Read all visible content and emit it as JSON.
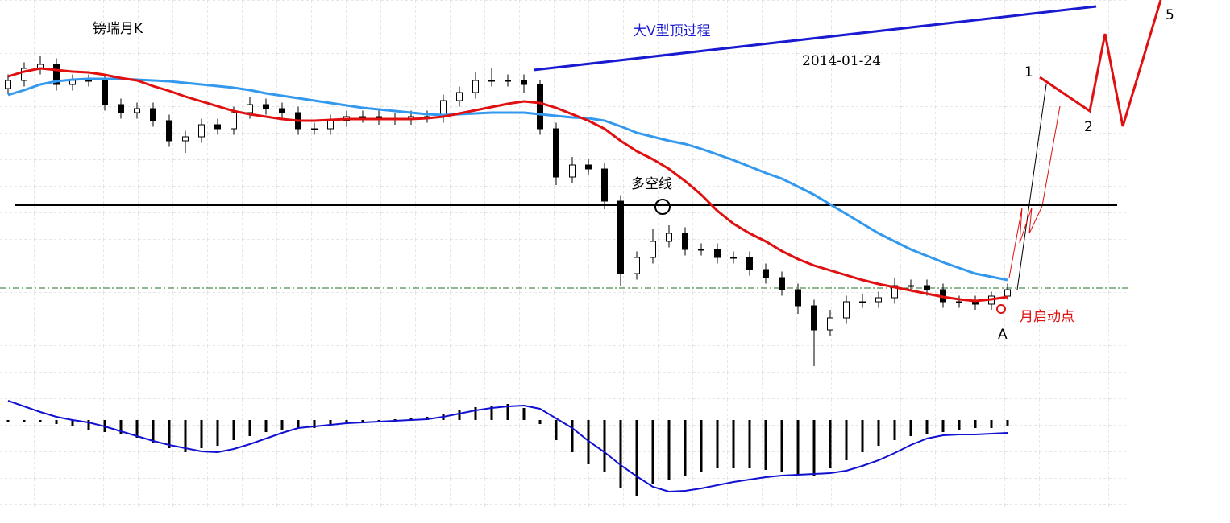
{
  "chart_data": {
    "type": "candlestick",
    "title": "镑瑞月K",
    "date_label": "2014-01-24",
    "annotations": [
      "大V型顶过程",
      "月启动点",
      "A",
      "1",
      "2",
      "5"
    ],
    "categories": [
      null,
      null,
      null,
      null,
      null,
      null,
      null,
      null,
      null,
      null,
      null,
      null,
      null,
      null,
      null,
      null,
      null,
      null,
      null,
      null,
      null,
      null,
      null,
      null,
      null,
      null,
      null,
      null,
      null,
      null,
      null,
      null,
      null,
      null,
      null,
      null,
      null,
      null,
      null,
      null,
      null,
      null,
      null,
      null,
      null,
      null,
      null,
      null,
      null,
      null,
      null,
      null,
      null,
      null,
      null,
      null,
      null,
      null,
      null,
      null,
      null,
      null,
      null
    ],
    "open": [
      72,
      74,
      77,
      78,
      73,
      74,
      74,
      68,
      66,
      67,
      64,
      59,
      60,
      63,
      62,
      66,
      68,
      67,
      66,
      62,
      62,
      64,
      65,
      65,
      64.4,
      64.4,
      65,
      65,
      69,
      71,
      74,
      74,
      74,
      73,
      62,
      50,
      53,
      52,
      44,
      26,
      30,
      34,
      36,
      32,
      32,
      30,
      30,
      27,
      25,
      22,
      18,
      12,
      15,
      19,
      19,
      20,
      23,
      23,
      22,
      19,
      19,
      18.4,
      20.4
    ],
    "high": [
      75.5,
      78.5,
      80,
      79.5,
      75.5,
      75.5,
      75.5,
      69.5,
      68.5,
      68.5,
      65.5,
      61.5,
      64.5,
      64.5,
      67.5,
      70,
      69.5,
      68.5,
      67.5,
      63.5,
      65.5,
      66.5,
      66.5,
      66.5,
      66,
      66.5,
      66.5,
      70.5,
      72.5,
      76,
      77,
      75.5,
      75.5,
      74,
      63.5,
      55,
      54.5,
      53.5,
      45.5,
      31.5,
      37,
      38,
      37.5,
      33.5,
      33.5,
      31.5,
      31.5,
      28.5,
      26.5,
      23.5,
      19.5,
      17,
      20.5,
      21,
      21.5,
      25,
      24.5,
      24.5,
      23.5,
      20.5,
      20.5,
      21.5,
      23.5
    ],
    "low": [
      70.5,
      72.5,
      75.5,
      71.5,
      71.5,
      72.5,
      66.5,
      64.5,
      64.5,
      62.5,
      57.5,
      56,
      58.5,
      60.5,
      60.5,
      64.5,
      65.5,
      64.5,
      60.5,
      60.5,
      60.5,
      62.5,
      63.5,
      63,
      63,
      63,
      63.5,
      63.5,
      67.5,
      69.5,
      72.5,
      72.5,
      71,
      60.5,
      48,
      48.5,
      50.5,
      42,
      23,
      24.5,
      28.5,
      32.5,
      30.5,
      30.5,
      28.5,
      28.5,
      25.5,
      23.5,
      20.5,
      16,
      3,
      10.5,
      13.5,
      17.5,
      17.5,
      18.5,
      21.5,
      20.5,
      17.5,
      17.5,
      17,
      17,
      19.5
    ],
    "close": [
      74,
      77,
      78,
      73,
      74,
      74,
      68,
      66,
      67,
      64,
      59,
      60,
      63,
      62,
      66,
      68,
      67,
      66,
      62,
      62,
      64,
      65,
      65,
      64.4,
      64.4,
      65,
      65,
      69,
      71,
      74,
      74,
      74,
      73,
      62,
      50,
      53,
      52,
      44,
      26,
      30,
      34,
      36,
      32,
      32,
      30,
      30,
      27,
      25,
      22,
      18,
      12,
      15,
      19,
      19,
      20,
      23,
      23,
      22,
      19,
      19,
      18.4,
      20.4,
      22
    ],
    "moving_averages": [
      {
        "color": "#3399ee",
        "values": [
          70.4,
          71.6,
          73,
          73.8,
          74.2,
          74.4,
          74.4,
          74.4,
          74.2,
          74,
          73.8,
          73.4,
          73,
          72.6,
          72.2,
          71.6,
          70.8,
          70.2,
          69.6,
          69,
          68.4,
          67.8,
          67.2,
          66.8,
          66.4,
          66,
          65.6,
          65.4,
          65.6,
          65.8,
          66,
          66,
          66,
          65.6,
          65.2,
          64.8,
          64.6,
          64,
          62.6,
          61,
          60,
          59,
          58.2,
          57,
          55.6,
          54.2,
          52.6,
          51,
          49.6,
          47.6,
          45.6,
          43.2,
          40.8,
          38.4,
          36,
          34,
          32,
          30.4,
          28.8,
          27.4,
          26,
          25.2,
          24.4
        ]
      },
      {
        "color": "#e01010",
        "values": [
          75,
          76.2,
          77,
          76.6,
          76.2,
          76,
          75.4,
          74.6,
          74,
          72.6,
          71.4,
          70,
          68.8,
          67.6,
          66.4,
          65.6,
          65,
          64.4,
          64,
          64,
          64.2,
          64.4,
          64.4,
          64.4,
          64.4,
          64.4,
          64.6,
          65,
          65.8,
          66.6,
          67.4,
          68.2,
          68.8,
          68.4,
          67.2,
          65.6,
          64,
          62,
          59,
          56.4,
          54.4,
          52,
          49,
          45.6,
          41.6,
          38.4,
          36,
          34,
          31.6,
          29.6,
          28,
          26.8,
          25.6,
          24.4,
          23.4,
          22.6,
          21.8,
          21,
          20.2,
          19.6,
          19.2,
          19.6,
          20.2
        ]
      }
    ],
    "levels": [
      {
        "value": 43,
        "label": "多空线",
        "color": "#000000"
      },
      {
        "value": 22.4,
        "color": "#207020"
      }
    ],
    "ylim": [
      0,
      94
    ],
    "macd": {
      "histogram": [
        -0.3,
        -0.3,
        -0.3,
        -0.5,
        -0.8,
        -1.2,
        -1.5,
        -1.8,
        -2.2,
        -2.8,
        -3.5,
        -4.0,
        -3.5,
        -3.2,
        -2.5,
        -2.0,
        -1.5,
        -1.2,
        -1.0,
        -1.0,
        -0.6,
        -0.4,
        -0.2,
        -0.1,
        0.1,
        0.2,
        0.4,
        0.8,
        1.2,
        1.6,
        1.8,
        2.0,
        1.5,
        -0.5,
        -2.5,
        -4.0,
        -5.5,
        -6.5,
        -8.5,
        -9.5,
        -8.0,
        -7.5,
        -7.0,
        -6.5,
        -6.0,
        -6.0,
        -6.0,
        -6.2,
        -6.5,
        -6.8,
        -7.0,
        -6.0,
        -5.0,
        -4.0,
        -3.2,
        -2.5,
        -2.0,
        -1.8,
        -1.5,
        -1.2,
        -1.0,
        -1.0,
        -0.8
      ],
      "dif": {
        "color": "#1010d0",
        "values": [
          2.4,
          1.7,
          1.0,
          0.4,
          0,
          -0.3,
          -0.8,
          -1.4,
          -2.0,
          -2.6,
          -3.1,
          -3.5,
          -3.9,
          -4.0,
          -3.6,
          -3.0,
          -2.3,
          -1.6,
          -1.0,
          -0.8,
          -0.6,
          -0.4,
          -0.3,
          -0.2,
          -0.1,
          0,
          0.1,
          0.4,
          0.8,
          1.2,
          1.5,
          1.7,
          1.8,
          1.4,
          0.2,
          -1.0,
          -2.6,
          -4.0,
          -5.6,
          -7.0,
          -8.3,
          -8.9,
          -8.8,
          -8.5,
          -8.1,
          -7.7,
          -7.4,
          -7.1,
          -6.9,
          -6.8,
          -6.7,
          -6.6,
          -6.3,
          -5.7,
          -5.0,
          -4.1,
          -3.1,
          -2.3,
          -1.9,
          -1.8,
          -1.8,
          -1.7,
          -1.6
        ]
      },
      "y2lim": [
        -10.8,
        4.2
      ]
    }
  }
}
